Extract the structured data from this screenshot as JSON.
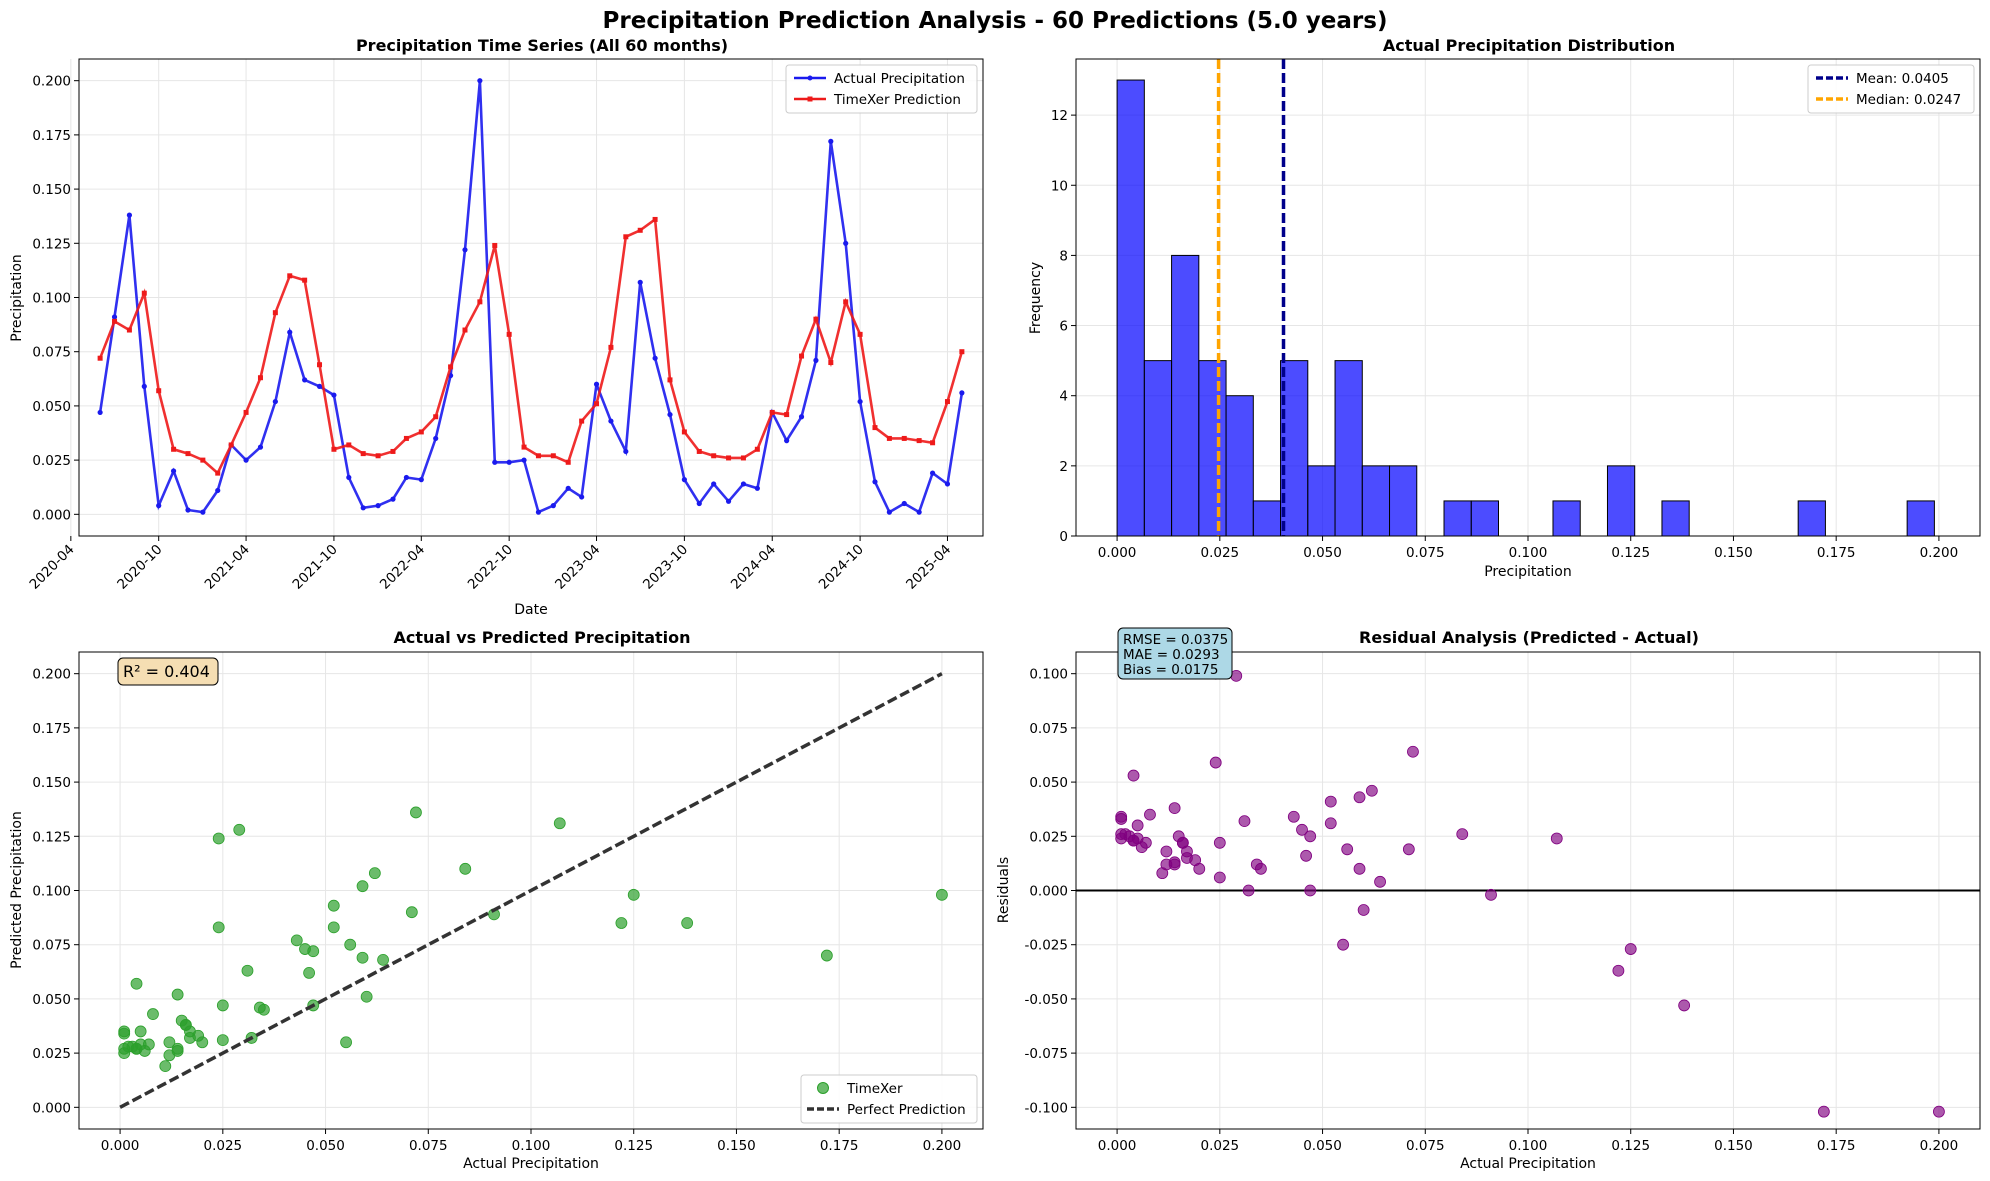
{
  "figure": {
    "title": "Precipitation Prediction Analysis - 60 Predictions (5.0 years)"
  },
  "chart_data": [
    {
      "id": "timeseries",
      "type": "line",
      "title": "Precipitation Time Series (All 60 months)",
      "xlabel": "Date",
      "ylabel": "Precipitation",
      "x_start": "2020-06",
      "x_tick_labels": [
        "2020-04",
        "2020-10",
        "2021-04",
        "2021-10",
        "2022-04",
        "2022-10",
        "2023-04",
        "2023-10",
        "2024-04",
        "2024-10",
        "2025-04"
      ],
      "ylim": [
        -0.01,
        0.21
      ],
      "yticks": [
        "0.000",
        "0.025",
        "0.050",
        "0.075",
        "0.100",
        "0.125",
        "0.150",
        "0.175",
        "0.200"
      ],
      "legend_position": "upper right",
      "grid": true,
      "series": [
        {
          "name": "Actual Precipitation",
          "color": "#1a1aee",
          "marker": "circle",
          "values": [
            0.047,
            0.091,
            0.138,
            0.059,
            0.004,
            0.02,
            0.002,
            0.001,
            0.011,
            0.032,
            0.025,
            0.031,
            0.052,
            0.084,
            0.062,
            0.059,
            0.055,
            0.017,
            0.003,
            0.004,
            0.007,
            0.017,
            0.016,
            0.035,
            0.064,
            0.122,
            0.2,
            0.024,
            0.024,
            0.025,
            0.001,
            0.004,
            0.012,
            0.008,
            0.06,
            0.043,
            0.029,
            0.107,
            0.072,
            0.046,
            0.016,
            0.005,
            0.014,
            0.006,
            0.014,
            0.012,
            0.047,
            0.034,
            0.045,
            0.071,
            0.172,
            0.125,
            0.052,
            0.015,
            0.001,
            0.005,
            0.001,
            0.019,
            0.014,
            0.056
          ]
        },
        {
          "name": "TimeXer Prediction",
          "color": "#ee1a1a",
          "marker": "square",
          "values": [
            0.072,
            0.089,
            0.085,
            0.102,
            0.057,
            0.03,
            0.028,
            0.025,
            0.019,
            0.032,
            0.047,
            0.063,
            0.093,
            0.11,
            0.108,
            0.069,
            0.03,
            0.032,
            0.028,
            0.027,
            0.029,
            0.035,
            0.038,
            0.045,
            0.068,
            0.085,
            0.098,
            0.124,
            0.083,
            0.031,
            0.027,
            0.027,
            0.024,
            0.043,
            0.051,
            0.077,
            0.128,
            0.131,
            0.136,
            0.062,
            0.038,
            0.029,
            0.027,
            0.026,
            0.026,
            0.03,
            0.047,
            0.046,
            0.073,
            0.09,
            0.07,
            0.098,
            0.083,
            0.04,
            0.035,
            0.035,
            0.034,
            0.033,
            0.052,
            0.075
          ]
        }
      ]
    },
    {
      "id": "histogram",
      "type": "bar",
      "title": "Actual Precipitation Distribution",
      "xlabel": "Precipitation",
      "ylabel": "Frequency",
      "xlim": [
        -0.01,
        0.21
      ],
      "ylim": [
        0,
        13.6
      ],
      "xticks": [
        "0.000",
        "0.025",
        "0.050",
        "0.075",
        "0.100",
        "0.125",
        "0.150",
        "0.175",
        "0.200"
      ],
      "yticks": [
        "0",
        "2",
        "4",
        "6",
        "8",
        "10",
        "12"
      ],
      "bin_start": 0.0,
      "bin_width": 0.00663,
      "counts": [
        13,
        5,
        8,
        5,
        4,
        1,
        5,
        2,
        5,
        2,
        2,
        0,
        1,
        1,
        0,
        0,
        1,
        0,
        2,
        0,
        1,
        0,
        0,
        0,
        0,
        1,
        0,
        0,
        0,
        1
      ],
      "bar_color": "#0000ff",
      "legend_position": "upper right",
      "grid": true,
      "lines": [
        {
          "name": "Mean: 0.0405",
          "value": 0.0405,
          "color": "#00008b"
        },
        {
          "name": "Median: 0.0247",
          "value": 0.0247,
          "color": "#ffa500"
        }
      ]
    },
    {
      "id": "scatter",
      "type": "scatter",
      "title": "Actual vs Predicted Precipitation",
      "xlabel": "Actual Precipitation",
      "ylabel": "Predicted Precipitation",
      "xlim": [
        -0.01,
        0.21
      ],
      "ylim": [
        -0.01,
        0.21
      ],
      "xticks": [
        "0.000",
        "0.025",
        "0.050",
        "0.075",
        "0.100",
        "0.125",
        "0.150",
        "0.175",
        "0.200"
      ],
      "yticks": [
        "0.000",
        "0.025",
        "0.050",
        "0.075",
        "0.100",
        "0.125",
        "0.150",
        "0.175",
        "0.200"
      ],
      "annotation": "R² = 0.404",
      "legend_position": "lower right",
      "grid": true,
      "series": [
        {
          "name": "TimeXer",
          "color": "#2ca02c",
          "points_from": "timeseries"
        },
        {
          "name": "Perfect Prediction",
          "color": "#333333",
          "line": [
            [
              0,
              0
            ],
            [
              0.2,
              0.2
            ]
          ]
        }
      ]
    },
    {
      "id": "residuals",
      "type": "scatter",
      "title": "Residual Analysis (Predicted - Actual)",
      "xlabel": "Actual Precipitation",
      "ylabel": "Residuals",
      "xlim": [
        -0.01,
        0.21
      ],
      "ylim": [
        -0.11,
        0.11
      ],
      "xticks": [
        "0.000",
        "0.025",
        "0.050",
        "0.075",
        "0.100",
        "0.125",
        "0.150",
        "0.175",
        "0.200"
      ],
      "yticks": [
        "-0.100",
        "-0.075",
        "-0.050",
        "-0.025",
        "0.000",
        "0.025",
        "0.050",
        "0.075",
        "0.100"
      ],
      "annotation_lines": [
        "RMSE = 0.0375",
        "MAE = 0.0293",
        "Bias = 0.0175"
      ],
      "zero_line": 0,
      "point_color": "#800080",
      "grid": true
    }
  ]
}
